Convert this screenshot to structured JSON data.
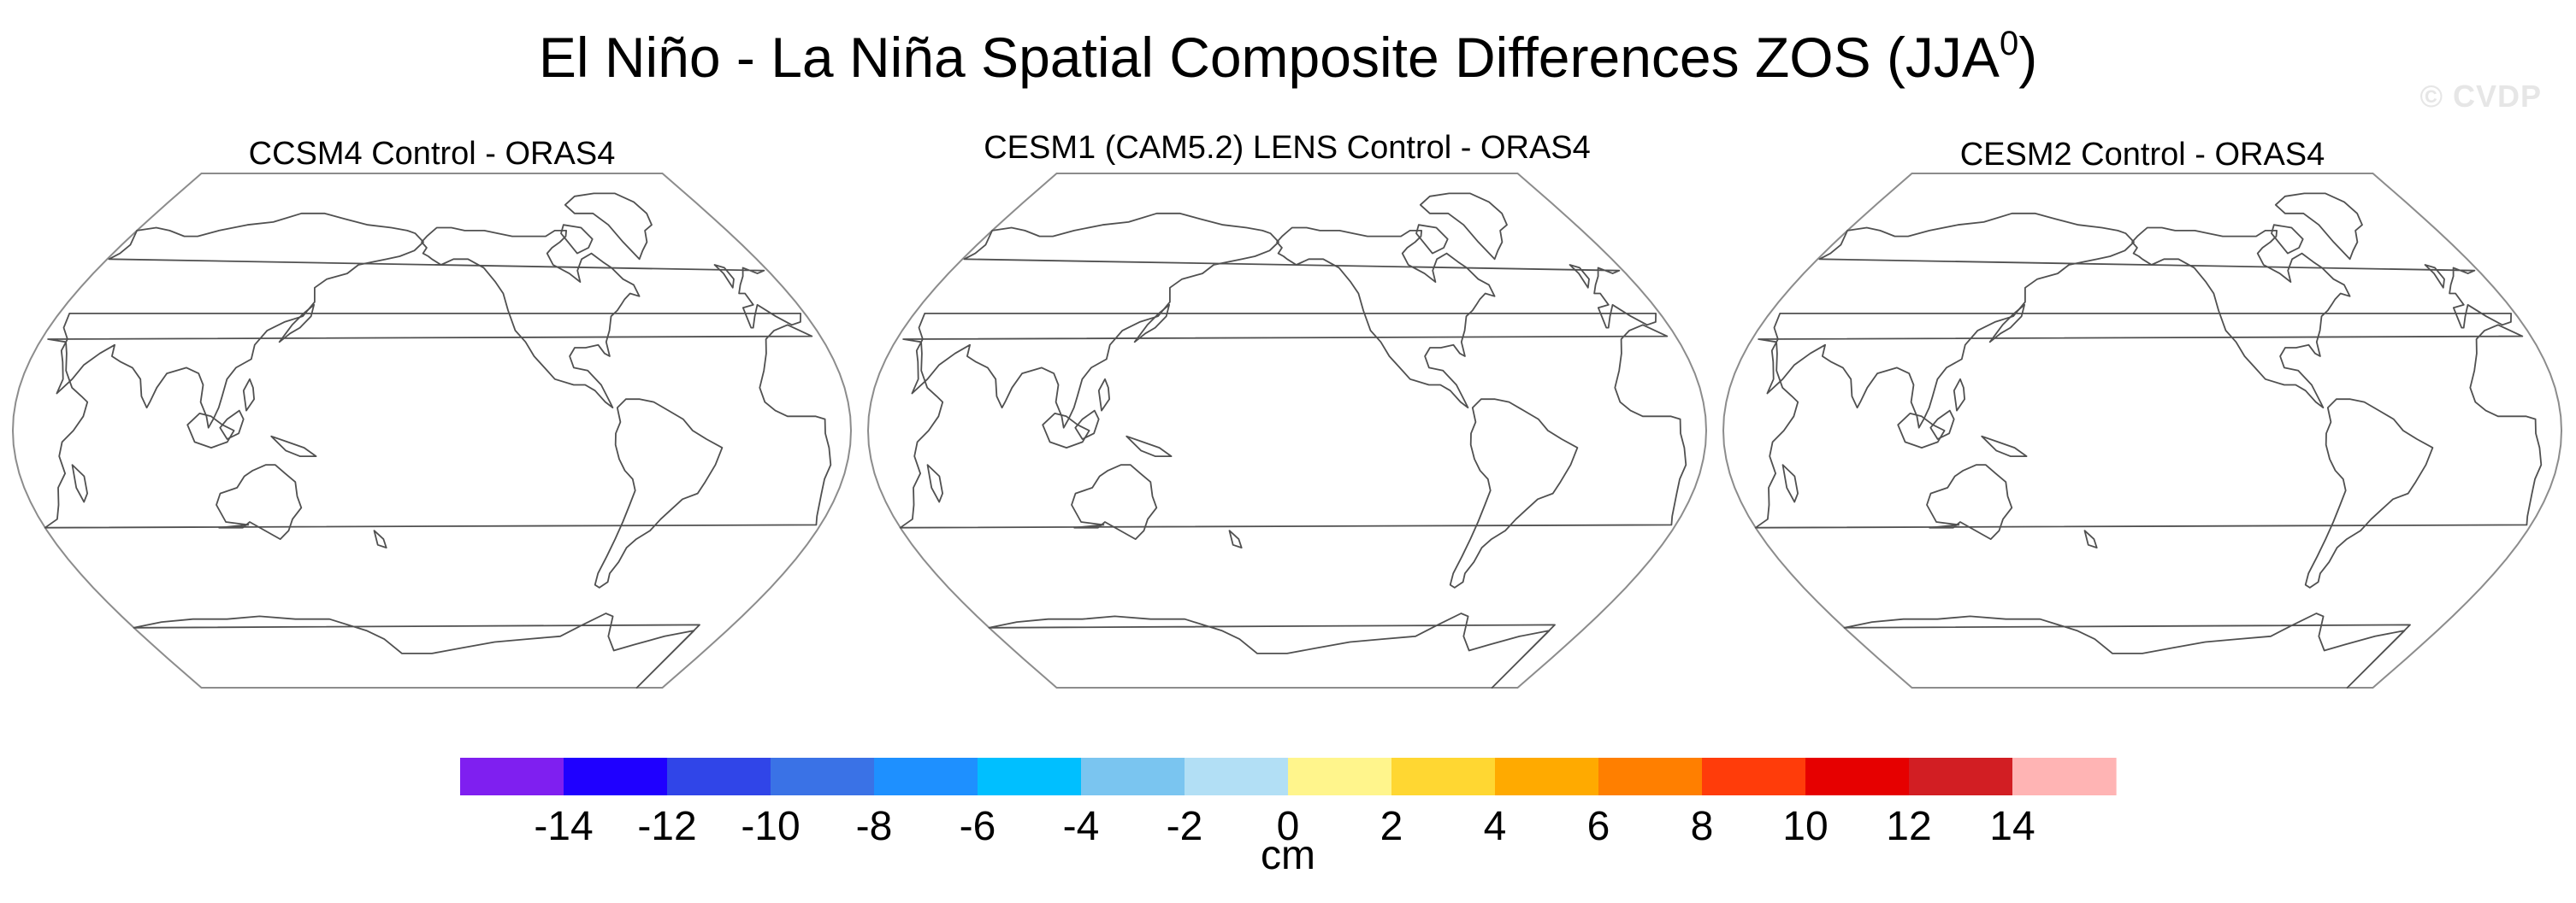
{
  "title": "El Niño - La Niña Spatial Composite Differences ZOS (JJA",
  "title_superscript": "0",
  "title_close": ")",
  "watermark": "© CVDP",
  "panels": [
    {
      "title": "CCSM4 Control - ORAS4"
    },
    {
      "title": "CESM1 (CAM5.2) LENS Control - ORAS4"
    },
    {
      "title": "CESM2 Control - ORAS4"
    }
  ],
  "colorbar": {
    "unit": "cm",
    "tick_labels": [
      "-14",
      "-12",
      "-10",
      "-8",
      "-6",
      "-4",
      "-2",
      "0",
      "2",
      "4",
      "6",
      "8",
      "10",
      "12",
      "14"
    ],
    "colors": [
      "#7f1ff0",
      "#1f00ff",
      "#3045e8",
      "#3a72e6",
      "#1e90ff",
      "#00bfff",
      "#7ac5f0",
      "#b2dff5",
      "#fff58c",
      "#ffd732",
      "#ffaa00",
      "#ff7f00",
      "#ff3c0a",
      "#e60000",
      "#d21e23",
      "#ffb4b4"
    ]
  }
}
